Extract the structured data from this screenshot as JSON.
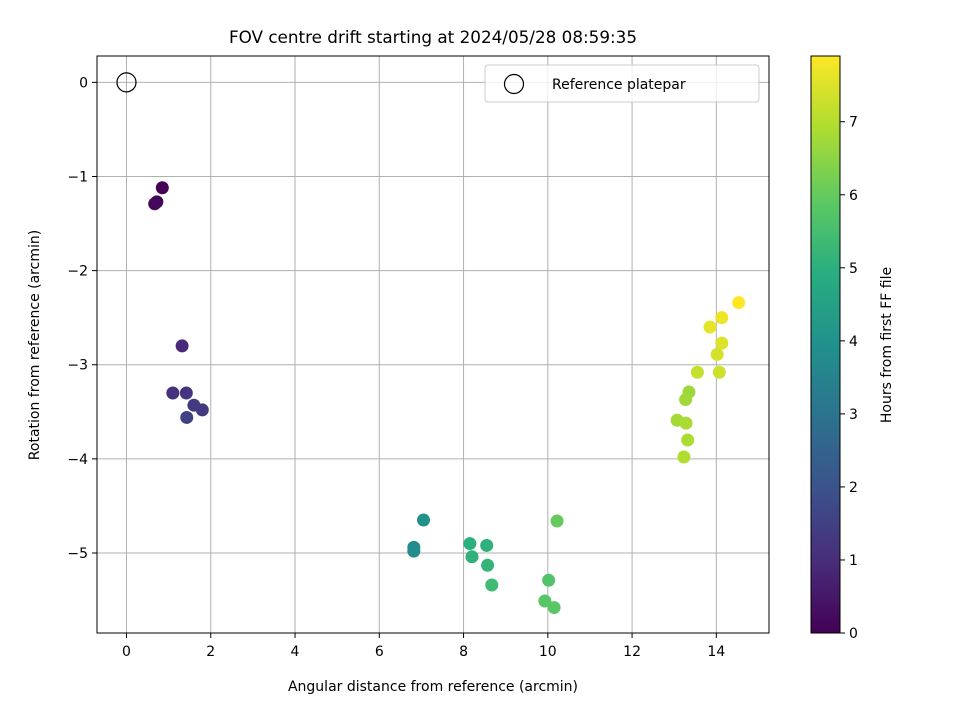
{
  "chart_data": {
    "type": "scatter",
    "title": "FOV centre drift starting at 2024/05/28 08:59:35",
    "xlabel": "Angular distance from reference (arcmin)",
    "ylabel": "Rotation from reference (arcmin)",
    "xlim": [
      -0.7,
      15.25
    ],
    "ylim": [
      -5.85,
      0.28
    ],
    "xticks": [
      0,
      2,
      4,
      6,
      8,
      10,
      12,
      14
    ],
    "yticks": [
      0,
      -1,
      -2,
      -3,
      -4,
      -5
    ],
    "grid": true,
    "legend": {
      "placement": "top-right",
      "entries": [
        "Reference platepar"
      ]
    },
    "reference_point": {
      "x": 0,
      "y": 0,
      "name": "Reference platepar"
    },
    "colorbar": {
      "label": "Hours from first FF file",
      "min": 0,
      "max": 7.9,
      "ticks": [
        0,
        1,
        2,
        3,
        4,
        5,
        6,
        7
      ],
      "colormap": "viridis"
    },
    "points": [
      {
        "x": 0.85,
        "y": -1.12,
        "c": 0.05
      },
      {
        "x": 0.72,
        "y": -1.27,
        "c": 0.1
      },
      {
        "x": 0.67,
        "y": -1.29,
        "c": 0.15
      },
      {
        "x": 1.32,
        "y": -2.8,
        "c": 0.95
      },
      {
        "x": 1.1,
        "y": -3.3,
        "c": 1.1
      },
      {
        "x": 1.42,
        "y": -3.3,
        "c": 1.2
      },
      {
        "x": 1.6,
        "y": -3.43,
        "c": 1.3
      },
      {
        "x": 1.8,
        "y": -3.48,
        "c": 1.35
      },
      {
        "x": 1.43,
        "y": -3.56,
        "c": 1.5
      },
      {
        "x": 7.05,
        "y": -4.65,
        "c": 4.0
      },
      {
        "x": 6.82,
        "y": -4.94,
        "c": 3.75
      },
      {
        "x": 6.82,
        "y": -4.98,
        "c": 3.8
      },
      {
        "x": 8.15,
        "y": -4.9,
        "c": 5.0
      },
      {
        "x": 8.55,
        "y": -4.92,
        "c": 5.05
      },
      {
        "x": 8.2,
        "y": -5.04,
        "c": 5.1
      },
      {
        "x": 8.57,
        "y": -5.13,
        "c": 5.2
      },
      {
        "x": 8.67,
        "y": -5.34,
        "c": 5.4
      },
      {
        "x": 10.22,
        "y": -4.66,
        "c": 6.0
      },
      {
        "x": 10.02,
        "y": -5.29,
        "c": 5.7
      },
      {
        "x": 9.93,
        "y": -5.51,
        "c": 5.8
      },
      {
        "x": 10.15,
        "y": -5.58,
        "c": 5.85
      },
      {
        "x": 13.35,
        "y": -3.29,
        "c": 6.7
      },
      {
        "x": 13.27,
        "y": -3.37,
        "c": 6.75
      },
      {
        "x": 13.07,
        "y": -3.59,
        "c": 6.8
      },
      {
        "x": 13.28,
        "y": -3.62,
        "c": 6.85
      },
      {
        "x": 13.32,
        "y": -3.8,
        "c": 6.9
      },
      {
        "x": 13.23,
        "y": -3.98,
        "c": 6.95
      },
      {
        "x": 13.55,
        "y": -3.08,
        "c": 7.2
      },
      {
        "x": 14.07,
        "y": -3.08,
        "c": 7.3
      },
      {
        "x": 14.02,
        "y": -2.89,
        "c": 7.4
      },
      {
        "x": 14.13,
        "y": -2.77,
        "c": 7.5
      },
      {
        "x": 13.85,
        "y": -2.6,
        "c": 7.6
      },
      {
        "x": 14.13,
        "y": -2.5,
        "c": 7.7
      },
      {
        "x": 14.53,
        "y": -2.34,
        "c": 7.9
      }
    ]
  }
}
